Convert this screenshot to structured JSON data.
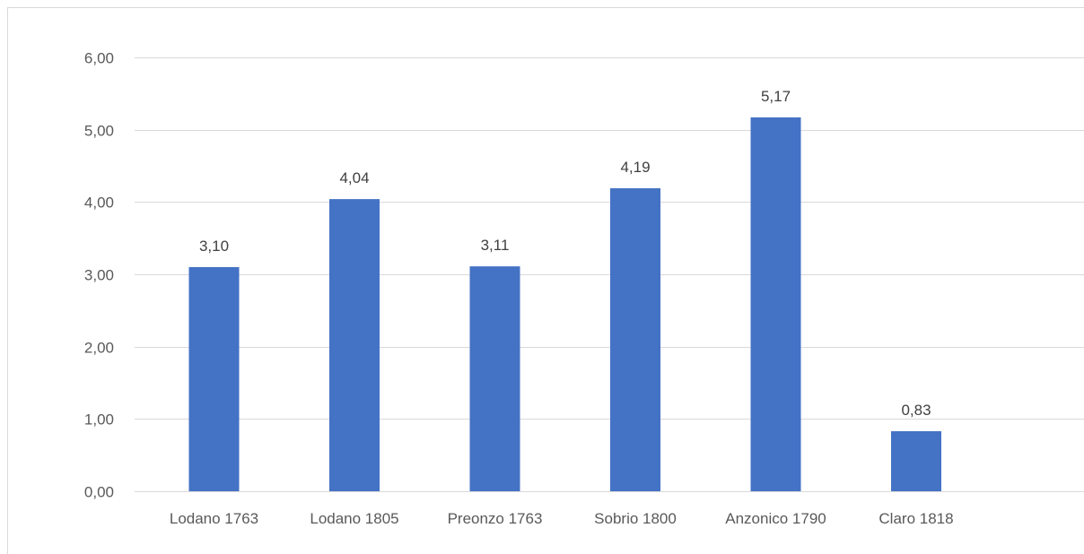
{
  "chart_data": {
    "type": "bar",
    "categories": [
      "Lodano 1763",
      "Lodano 1805",
      "Preonzo 1763",
      "Sobrio 1800",
      "Anzonico 1790",
      "Claro 1818"
    ],
    "values": [
      3.1,
      4.04,
      3.11,
      4.19,
      5.17,
      0.83
    ],
    "data_labels": [
      "3,10",
      "4,04",
      "3,11",
      "4,19",
      "5,17",
      "0,83"
    ],
    "yticks": [
      0,
      1,
      2,
      3,
      4,
      5,
      6
    ],
    "ytick_labels": [
      "0,00",
      "1,00",
      "2,00",
      "3,00",
      "4,00",
      "5,00",
      "6,00"
    ],
    "ylim": [
      0,
      6
    ],
    "grid": true,
    "legend": "none",
    "title": "",
    "xlabel": "",
    "ylabel": "",
    "colors": {
      "bar": "#4472c4"
    }
  }
}
